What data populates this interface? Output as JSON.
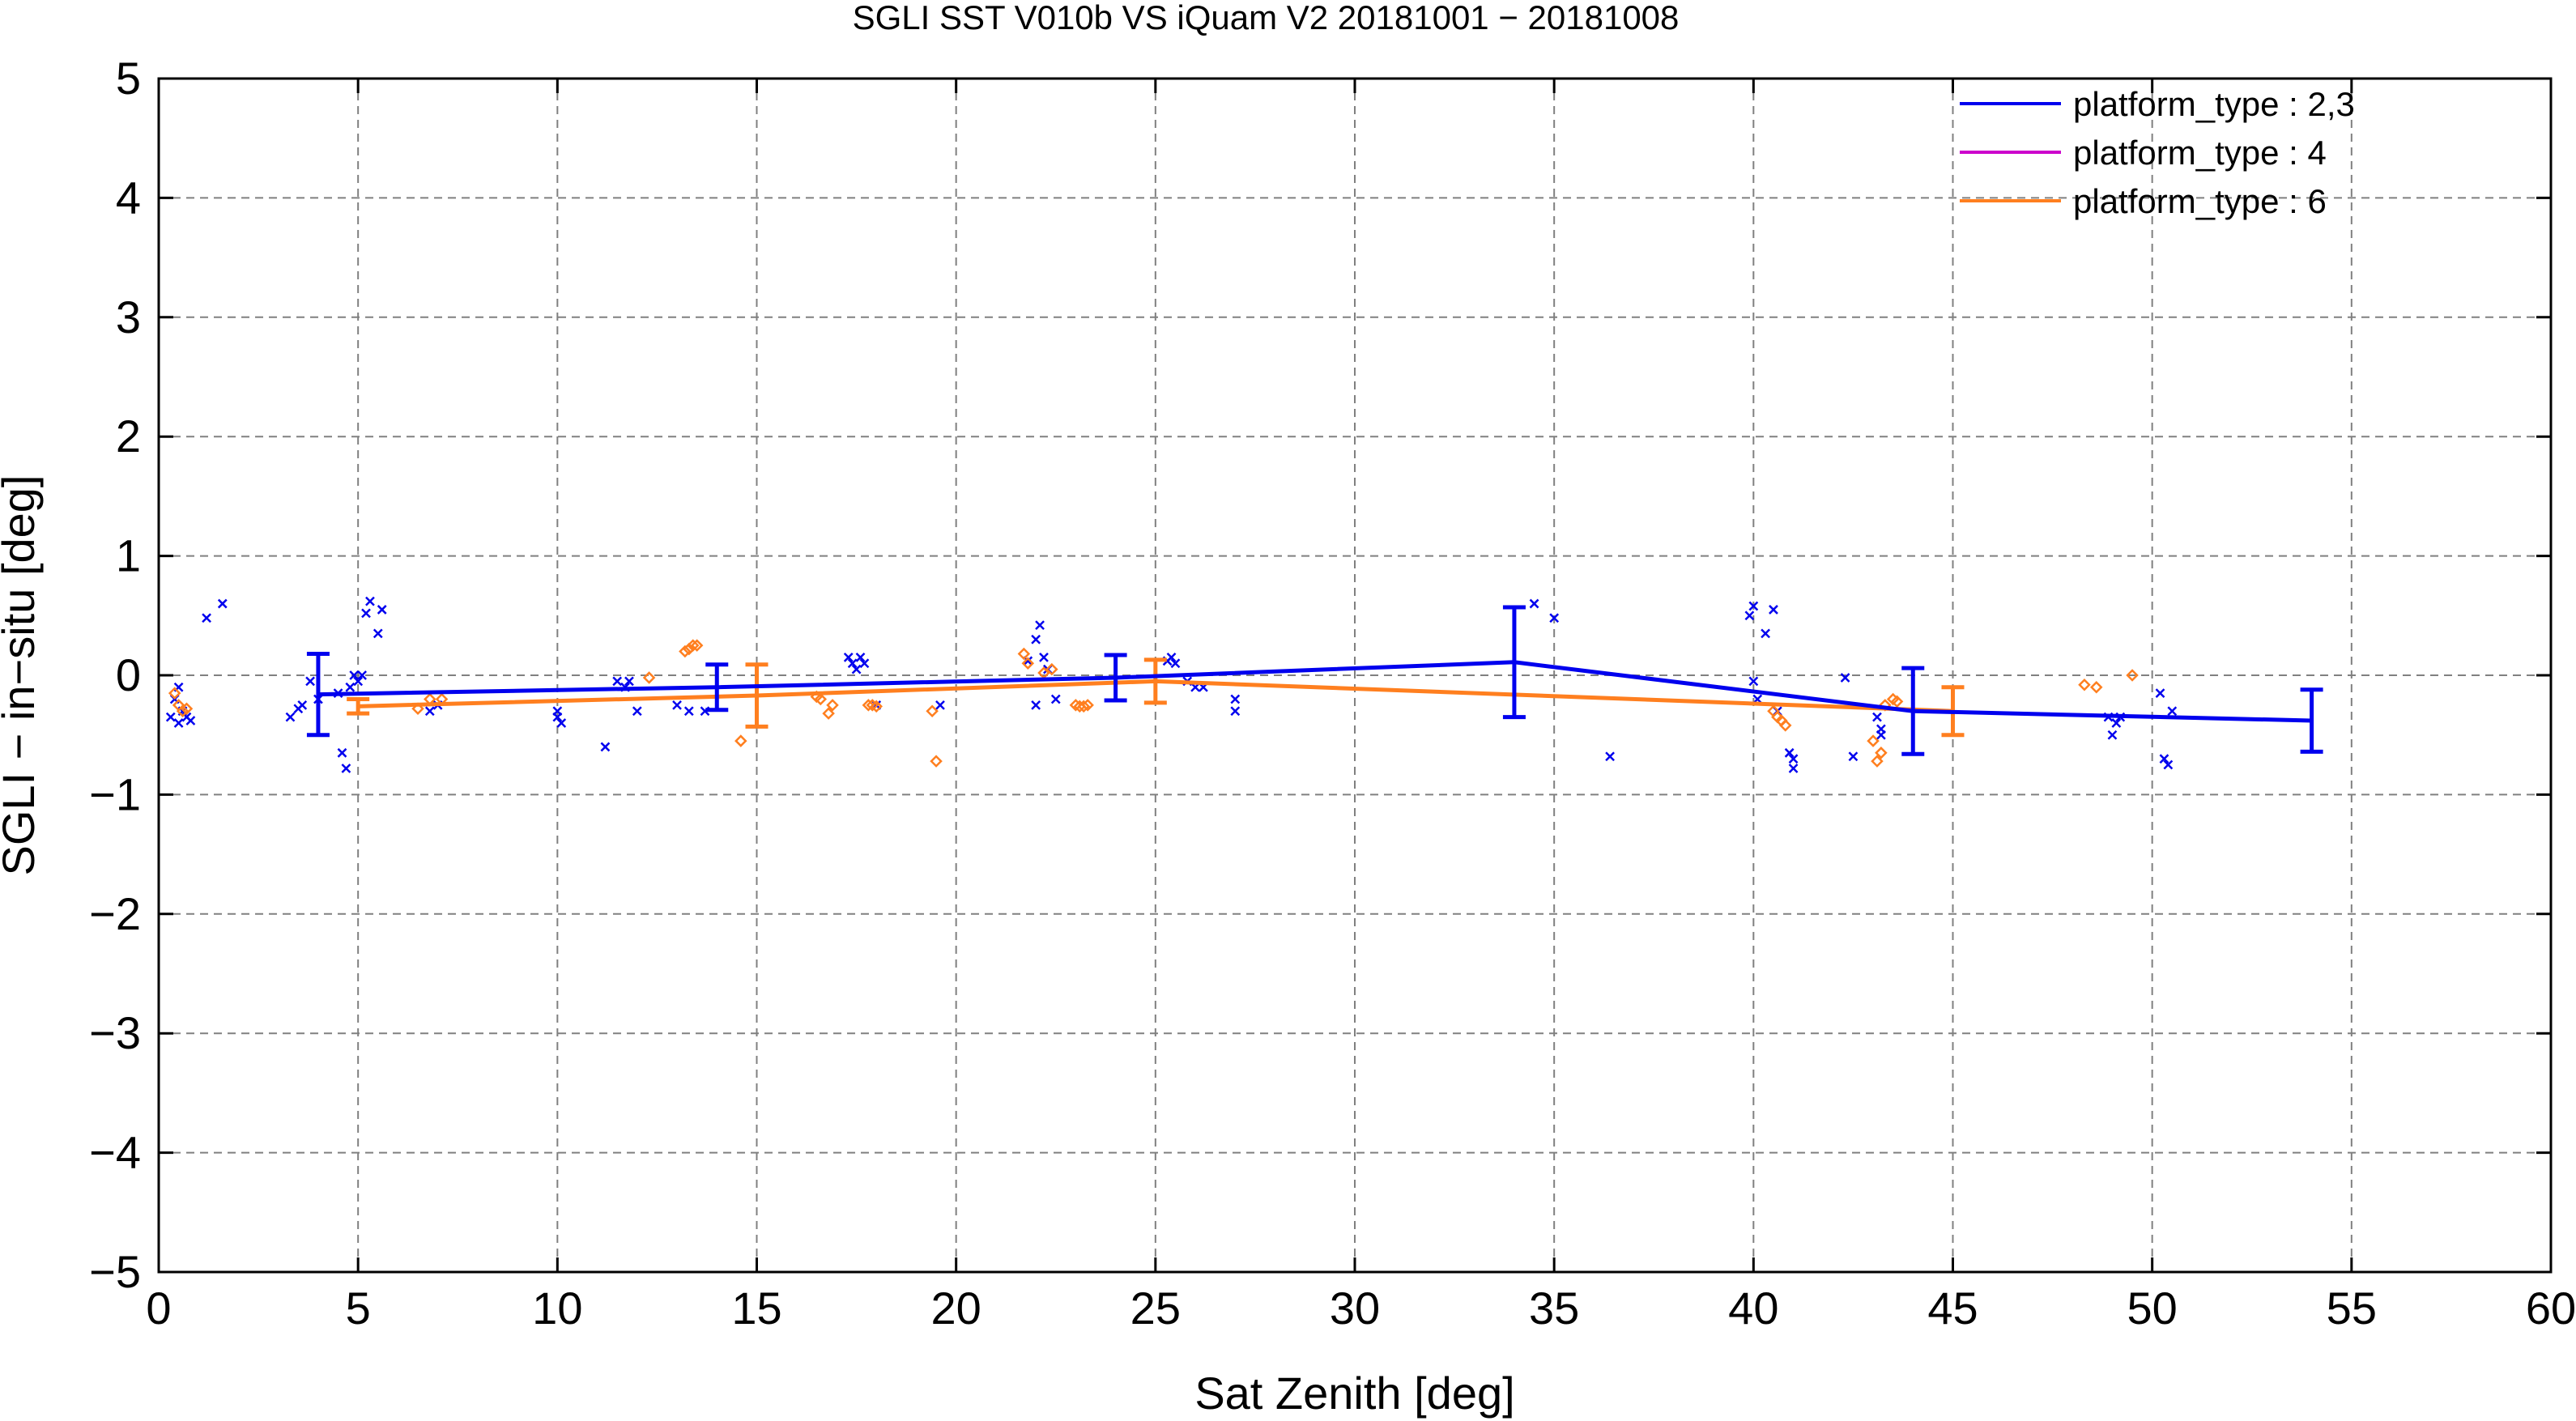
{
  "chart_data": {
    "type": "scatter",
    "title": "SGLI SST V010b VS iQuam V2 20181001 − 20181008",
    "xlabel": "Sat Zenith [deg]",
    "ylabel": "SGLI − in−situ [deg]",
    "xlim": [
      0,
      60
    ],
    "ylim": [
      -5,
      5
    ],
    "x_ticks": [
      0,
      5,
      10,
      15,
      20,
      25,
      30,
      35,
      40,
      45,
      50,
      55,
      60
    ],
    "y_ticks": [
      -5,
      -4,
      -3,
      -2,
      -1,
      0,
      1,
      2,
      3,
      4,
      5
    ],
    "x_tick_labels": [
      "0",
      "5",
      "10",
      "15",
      "20",
      "25",
      "30",
      "35",
      "40",
      "45",
      "50",
      "55",
      "60"
    ],
    "y_tick_labels": [
      "−5",
      "−4",
      "−3",
      "−2",
      "−1",
      "0",
      "1",
      "2",
      "3",
      "4",
      "5"
    ],
    "grid": true,
    "legend_position": "top-right",
    "series": [
      {
        "name": "platform_type : 2,3",
        "color": "#0000ee",
        "marker": "x",
        "points": [
          [
            0.3,
            -0.35
          ],
          [
            0.4,
            -0.2
          ],
          [
            0.5,
            -0.4
          ],
          [
            0.5,
            -0.1
          ],
          [
            0.6,
            -0.3
          ],
          [
            0.7,
            -0.35
          ],
          [
            0.8,
            -0.38
          ],
          [
            1.2,
            0.48
          ],
          [
            1.6,
            0.6
          ],
          [
            3.3,
            -0.35
          ],
          [
            3.5,
            -0.28
          ],
          [
            3.6,
            -0.25
          ],
          [
            3.8,
            -0.05
          ],
          [
            4.0,
            -0.2
          ],
          [
            4.5,
            -0.15
          ],
          [
            4.6,
            -0.65
          ],
          [
            4.7,
            -0.78
          ],
          [
            4.8,
            -0.1
          ],
          [
            4.9,
            0.0
          ],
          [
            5.0,
            -0.05
          ],
          [
            5.1,
            0.0
          ],
          [
            5.2,
            0.52
          ],
          [
            5.3,
            0.62
          ],
          [
            5.5,
            0.35
          ],
          [
            5.6,
            0.55
          ],
          [
            6.8,
            -0.3
          ],
          [
            7.0,
            -0.25
          ],
          [
            10.0,
            -0.3
          ],
          [
            10.0,
            -0.35
          ],
          [
            10.1,
            -0.4
          ],
          [
            11.2,
            -0.6
          ],
          [
            11.5,
            -0.05
          ],
          [
            11.7,
            -0.1
          ],
          [
            11.8,
            -0.05
          ],
          [
            12.0,
            -0.3
          ],
          [
            13.0,
            -0.25
          ],
          [
            13.3,
            -0.3
          ],
          [
            13.7,
            -0.3
          ],
          [
            17.3,
            0.15
          ],
          [
            17.4,
            0.1
          ],
          [
            17.5,
            0.05
          ],
          [
            17.6,
            0.15
          ],
          [
            17.7,
            0.1
          ],
          [
            18.0,
            -0.25
          ],
          [
            19.6,
            -0.25
          ],
          [
            21.8,
            0.12
          ],
          [
            22.0,
            0.3
          ],
          [
            22.1,
            0.42
          ],
          [
            22.2,
            0.15
          ],
          [
            22.3,
            0.05
          ],
          [
            22.0,
            -0.25
          ],
          [
            22.5,
            -0.2
          ],
          [
            25.3,
            0.12
          ],
          [
            25.4,
            0.15
          ],
          [
            25.5,
            0.1
          ],
          [
            25.8,
            -0.05
          ],
          [
            26.0,
            -0.1
          ],
          [
            26.2,
            -0.1
          ],
          [
            27.0,
            -0.2
          ],
          [
            27.0,
            -0.3
          ],
          [
            34.5,
            0.6
          ],
          [
            35.0,
            0.48
          ],
          [
            36.4,
            -0.68
          ],
          [
            39.9,
            0.5
          ],
          [
            40.0,
            -0.05
          ],
          [
            40.0,
            0.58
          ],
          [
            40.1,
            -0.2
          ],
          [
            40.3,
            0.35
          ],
          [
            40.5,
            0.55
          ],
          [
            40.6,
            -0.3
          ],
          [
            40.9,
            -0.65
          ],
          [
            41.0,
            -0.7
          ],
          [
            41.0,
            -0.78
          ],
          [
            42.3,
            -0.02
          ],
          [
            42.5,
            -0.68
          ],
          [
            43.1,
            -0.35
          ],
          [
            43.2,
            -0.45
          ],
          [
            43.2,
            -0.5
          ],
          [
            48.9,
            -0.35
          ],
          [
            49.0,
            -0.5
          ],
          [
            49.1,
            -0.4
          ],
          [
            49.2,
            -0.35
          ],
          [
            50.2,
            -0.15
          ],
          [
            50.3,
            -0.7
          ],
          [
            50.4,
            -0.75
          ],
          [
            50.5,
            -0.3
          ]
        ],
        "mean_line": {
          "x": [
            4,
            14,
            24,
            34,
            44,
            54
          ],
          "y": [
            -0.16,
            -0.1,
            -0.02,
            0.11,
            -0.3,
            -0.38
          ],
          "err": [
            0.34,
            0.19,
            0.19,
            0.46,
            0.36,
            0.26
          ]
        }
      },
      {
        "name": "platform_type : 4",
        "color": "#cc00cc",
        "marker": "x",
        "points": []
      },
      {
        "name": "platform_type : 6",
        "color": "#ff7f1f",
        "marker": "diamond",
        "points": [
          [
            0.4,
            -0.15
          ],
          [
            0.5,
            -0.25
          ],
          [
            0.6,
            -0.3
          ],
          [
            0.7,
            -0.28
          ],
          [
            6.5,
            -0.28
          ],
          [
            6.8,
            -0.2
          ],
          [
            7.1,
            -0.2
          ],
          [
            12.3,
            -0.02
          ],
          [
            13.2,
            0.2
          ],
          [
            13.3,
            0.22
          ],
          [
            13.4,
            0.25
          ],
          [
            13.5,
            0.25
          ],
          [
            14.6,
            -0.55
          ],
          [
            16.5,
            -0.18
          ],
          [
            16.6,
            -0.2
          ],
          [
            16.8,
            -0.32
          ],
          [
            16.9,
            -0.25
          ],
          [
            17.8,
            -0.25
          ],
          [
            17.9,
            -0.25
          ],
          [
            18.0,
            -0.26
          ],
          [
            19.4,
            -0.3
          ],
          [
            19.5,
            -0.72
          ],
          [
            21.7,
            0.18
          ],
          [
            21.8,
            0.1
          ],
          [
            22.2,
            0.02
          ],
          [
            22.4,
            0.05
          ],
          [
            23.0,
            -0.25
          ],
          [
            23.1,
            -0.26
          ],
          [
            23.2,
            -0.26
          ],
          [
            23.3,
            -0.25
          ],
          [
            40.5,
            -0.3
          ],
          [
            40.6,
            -0.35
          ],
          [
            40.7,
            -0.38
          ],
          [
            40.8,
            -0.42
          ],
          [
            43.0,
            -0.55
          ],
          [
            43.1,
            -0.72
          ],
          [
            43.2,
            -0.65
          ],
          [
            43.3,
            -0.25
          ],
          [
            43.5,
            -0.2
          ],
          [
            43.6,
            -0.22
          ],
          [
            48.3,
            -0.08
          ],
          [
            48.6,
            -0.1
          ],
          [
            49.5,
            0.0
          ]
        ],
        "mean_line": {
          "x": [
            5,
            15,
            25,
            45
          ],
          "y": [
            -0.26,
            -0.17,
            -0.05,
            -0.3
          ],
          "err": [
            0.06,
            0.26,
            0.18,
            0.2
          ]
        }
      }
    ]
  }
}
